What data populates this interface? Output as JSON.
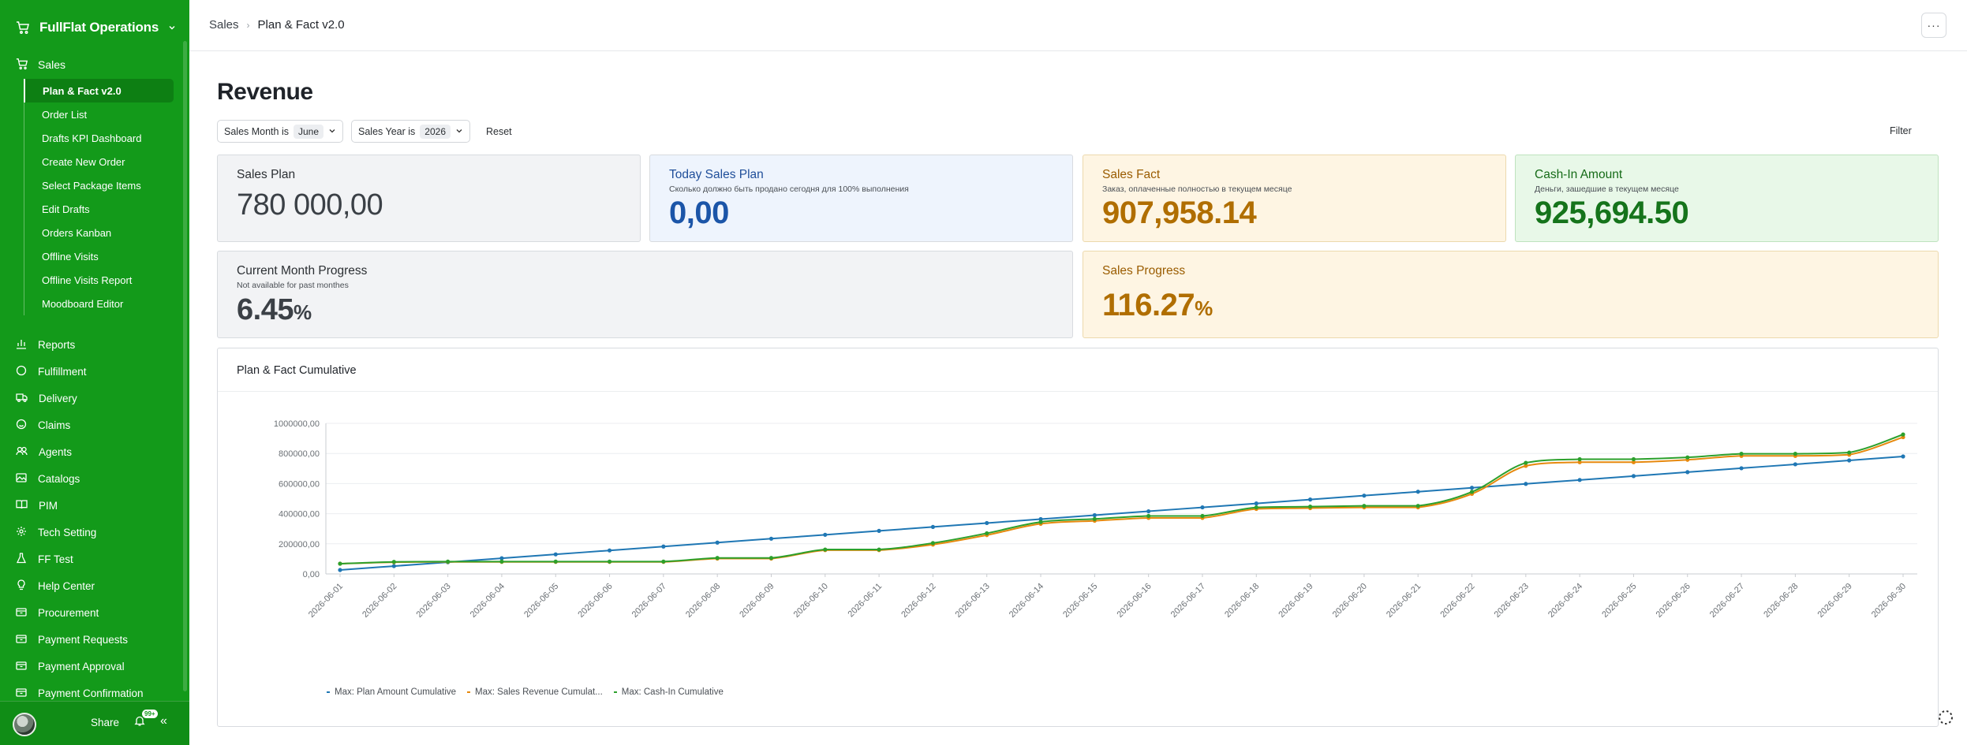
{
  "sidebar": {
    "app_title": "FullFlat Operations",
    "active_section": "Sales",
    "sub_items": [
      "Plan & Fact v2.0",
      "Order List",
      "Drafts KPI Dashboard",
      "Create New Order",
      "Select Package Items",
      "Edit Drafts",
      "Orders Kanban",
      "Offline Visits",
      "Offline Visits Report",
      "Moodboard Editor"
    ],
    "items": [
      {
        "label": "Reports",
        "icon": "chart-icon"
      },
      {
        "label": "Fulfillment",
        "icon": "circle-icon"
      },
      {
        "label": "Delivery",
        "icon": "truck-icon"
      },
      {
        "label": "Claims",
        "icon": "smile-icon"
      },
      {
        "label": "Agents",
        "icon": "users-icon"
      },
      {
        "label": "Catalogs",
        "icon": "image-icon"
      },
      {
        "label": "PIM",
        "icon": "book-icon"
      },
      {
        "label": "Tech Setting",
        "icon": "settings-icon"
      },
      {
        "label": "FF Test",
        "icon": "flask-icon"
      },
      {
        "label": "Help Center",
        "icon": "lightbulb-icon"
      },
      {
        "label": "Procurement",
        "icon": "box-icon"
      },
      {
        "label": "Payment Requests",
        "icon": "box-icon"
      },
      {
        "label": "Payment Approval",
        "icon": "box-icon"
      },
      {
        "label": "Payment Confirmation",
        "icon": "box-icon"
      }
    ],
    "footer": {
      "share_label": "Share",
      "badge": "99+"
    }
  },
  "breadcrumb": {
    "parent": "Sales",
    "current": "Plan & Fact v2.0"
  },
  "page": {
    "title": "Revenue"
  },
  "filters": {
    "month": {
      "label": "Sales Month is",
      "value": "June"
    },
    "year": {
      "label": "Sales Year is",
      "value": "2026"
    },
    "reset_label": "Reset",
    "filter_label": "Filter"
  },
  "cards": {
    "sales_plan": {
      "title": "Sales Plan",
      "value": "780 000,00"
    },
    "today_plan": {
      "title": "Today Sales Plan",
      "subtitle": "Сколько должно быть продано сегодня для 100% выполнения",
      "value": "0,00"
    },
    "sales_fact": {
      "title": "Sales Fact",
      "subtitle": "Заказ, оплаченные полностью в текущем месяце",
      "value": "907,958.14"
    },
    "cash_in": {
      "title": "Cash-In Amount",
      "subtitle": "Деньги, зашедшие в текущем месяце",
      "value": "925,694.50"
    },
    "month_progress": {
      "title": "Current Month Progress",
      "subtitle": "Not available for past monthes",
      "value": "6.45",
      "unit": "%"
    },
    "sales_progress": {
      "title": "Sales Progress",
      "value": "116.27",
      "unit": "%"
    }
  },
  "chart_title": "Plan & Fact Cumulative",
  "colors": {
    "sidebar": "#139a1a",
    "plan": "#1f77b4",
    "revenue": "#e6890e",
    "cashin": "#2ca02c"
  },
  "chart_data": {
    "type": "line",
    "x": [
      "2026-06-01",
      "2026-06-02",
      "2026-06-03",
      "2026-06-04",
      "2026-06-05",
      "2026-06-06",
      "2026-06-07",
      "2026-06-08",
      "2026-06-09",
      "2026-06-10",
      "2026-06-11",
      "2026-06-12",
      "2026-06-13",
      "2026-06-14",
      "2026-06-15",
      "2026-06-16",
      "2026-06-17",
      "2026-06-18",
      "2026-06-19",
      "2026-06-20",
      "2026-06-21",
      "2026-06-22",
      "2026-06-23",
      "2026-06-24",
      "2026-06-25",
      "2026-06-26",
      "2026-06-27",
      "2026-06-28",
      "2026-06-29",
      "2026-06-30"
    ],
    "yticks": [
      "0,00",
      "200000,00",
      "400000,00",
      "600000,00",
      "800000,00",
      "1000000,00"
    ],
    "ylim": [
      0,
      1000000
    ],
    "grid": true,
    "legend_position": "bottom-left",
    "series": [
      {
        "name": "Max: Plan Amount Cumulative",
        "color": "#1f77b4",
        "values": [
          26000,
          52000,
          78000,
          104000,
          130000,
          156000,
          182000,
          208000,
          234000,
          260000,
          286000,
          312000,
          338000,
          364000,
          390000,
          416000,
          442000,
          468000,
          494000,
          520000,
          546000,
          572000,
          598000,
          624000,
          650000,
          676000,
          702000,
          728000,
          754000,
          780000
        ]
      },
      {
        "name": "Max: Sales Revenue Cumulat...",
        "color": "#e6890e",
        "values": [
          68000,
          78000,
          80000,
          80000,
          80000,
          80000,
          80000,
          102000,
          102000,
          158000,
          158000,
          195000,
          258000,
          333000,
          353000,
          372000,
          372000,
          432000,
          437000,
          442000,
          442000,
          532000,
          718000,
          742000,
          742000,
          758000,
          784000,
          784000,
          792000,
          908000
        ]
      },
      {
        "name": "Max: Cash-In Cumulative",
        "color": "#2ca02c",
        "values": [
          68000,
          80000,
          82000,
          82000,
          82000,
          82000,
          82000,
          106000,
          106000,
          162000,
          162000,
          205000,
          270000,
          345000,
          365000,
          385000,
          385000,
          442000,
          447000,
          452000,
          452000,
          545000,
          738000,
          762000,
          762000,
          774000,
          798000,
          798000,
          806000,
          926000
        ]
      }
    ]
  }
}
